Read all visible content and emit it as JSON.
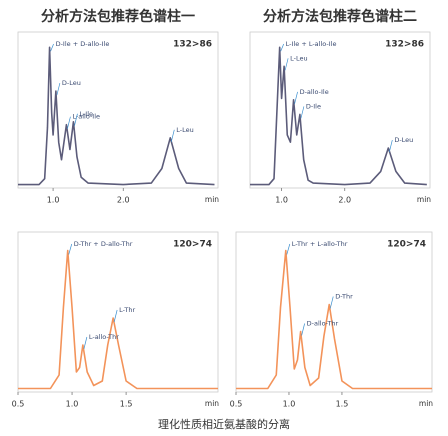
{
  "figure": {
    "column_titles": [
      "分析方法包推荐色谱柱一",
      "分析方法包推荐色谱柱二"
    ],
    "caption": "理化性质相近氨基酸的分离"
  },
  "chart_data": [
    {
      "type": "line",
      "label": "132>86",
      "xlabel": "min",
      "color": "#5c5c7a",
      "xlim": [
        0.5,
        3.35
      ],
      "ylim": [
        0,
        100
      ],
      "xticks": [
        {
          "value": 1,
          "label": "1.0"
        },
        {
          "value": 2,
          "label": "2.0"
        }
      ],
      "x": [
        0.5,
        0.8,
        0.88,
        0.92,
        0.95,
        0.98,
        1.0,
        1.04,
        1.08,
        1.12,
        1.19,
        1.24,
        1.29,
        1.34,
        1.4,
        1.5,
        2.0,
        2.4,
        2.55,
        2.67,
        2.79,
        2.9,
        3.3
      ],
      "values": [
        1,
        1,
        5,
        40,
        95,
        50,
        35,
        65,
        30,
        18,
        42,
        25,
        44,
        20,
        6,
        2,
        1,
        2,
        12,
        33,
        12,
        2,
        1
      ],
      "annotations": [
        {
          "text": "D-Ile + D-allo-Ile",
          "x": 0.95,
          "y": 95
        },
        {
          "text": "D-Leu",
          "x": 1.04,
          "y": 65
        },
        {
          "text": "L-allo-Ile",
          "x": 1.19,
          "y": 42
        },
        {
          "text": "L-Ile",
          "x": 1.29,
          "y": 44
        },
        {
          "text": "L-Leu",
          "x": 2.67,
          "y": 33
        }
      ]
    },
    {
      "type": "line",
      "label": "132>86",
      "xlabel": "min",
      "color": "#5c5c7a",
      "xlim": [
        0.5,
        3.35
      ],
      "ylim": [
        0,
        100
      ],
      "xticks": [
        {
          "value": 1,
          "label": "1.0"
        },
        {
          "value": 2,
          "label": "2.0"
        }
      ],
      "x": [
        0.5,
        0.8,
        0.88,
        0.92,
        0.97,
        1.0,
        1.04,
        1.09,
        1.14,
        1.19,
        1.24,
        1.29,
        1.35,
        1.42,
        1.5,
        2.0,
        2.4,
        2.57,
        2.69,
        2.81,
        2.95,
        3.3
      ],
      "values": [
        1,
        1,
        5,
        45,
        95,
        60,
        82,
        35,
        30,
        59,
        35,
        49,
        18,
        4,
        2,
        1,
        2,
        10,
        26,
        10,
        2,
        1
      ],
      "annotations": [
        {
          "text": "L-Ile + L-allo-Ile",
          "x": 0.97,
          "y": 95
        },
        {
          "text": "L-Leu",
          "x": 1.04,
          "y": 82
        },
        {
          "text": "D-allo-Ile",
          "x": 1.19,
          "y": 59
        },
        {
          "text": "D-Ile",
          "x": 1.29,
          "y": 49
        },
        {
          "text": "D-Leu",
          "x": 2.69,
          "y": 26
        }
      ]
    },
    {
      "type": "line",
      "label": "120>74",
      "xlabel": "min",
      "color": "#f3935a",
      "xlim": [
        0.5,
        2.35
      ],
      "ylim": [
        0,
        100
      ],
      "xticks": [
        0.5,
        {
          "value": 1,
          "label": "1.0"
        },
        1.5
      ],
      "x": [
        0.5,
        0.8,
        0.88,
        0.92,
        0.96,
        1.0,
        1.04,
        1.07,
        1.1,
        1.14,
        1.2,
        1.28,
        1.33,
        1.38,
        1.43,
        1.5,
        1.6,
        2.35
      ],
      "values": [
        1,
        1,
        10,
        55,
        93,
        55,
        12,
        15,
        30,
        12,
        3,
        6,
        30,
        48,
        30,
        6,
        1,
        1
      ],
      "annotations": [
        {
          "text": "D-Thr + D-allo-Thr",
          "x": 0.96,
          "y": 93
        },
        {
          "text": "L-allo-Thr",
          "x": 1.1,
          "y": 30
        },
        {
          "text": "L-Thr",
          "x": 1.38,
          "y": 48
        }
      ]
    },
    {
      "type": "line",
      "label": "120>74",
      "xlabel": "min",
      "color": "#f3935a",
      "xlim": [
        0.5,
        2.35
      ],
      "ylim": [
        0,
        100
      ],
      "xticks": [
        0.5,
        {
          "value": 1,
          "label": "1.0"
        },
        1.5
      ],
      "x": [
        0.5,
        0.8,
        0.88,
        0.92,
        0.97,
        1.01,
        1.05,
        1.08,
        1.11,
        1.15,
        1.2,
        1.28,
        1.33,
        1.38,
        1.43,
        1.5,
        1.6,
        2.35
      ],
      "values": [
        1,
        1,
        10,
        55,
        93,
        55,
        14,
        20,
        39,
        15,
        3,
        8,
        36,
        57,
        34,
        6,
        1,
        1
      ],
      "annotations": [
        {
          "text": "L-Thr + L-allo-Thr",
          "x": 0.97,
          "y": 93
        },
        {
          "text": "D-allo-Thr",
          "x": 1.11,
          "y": 39
        },
        {
          "text": "D-Thr",
          "x": 1.38,
          "y": 57
        }
      ]
    }
  ]
}
